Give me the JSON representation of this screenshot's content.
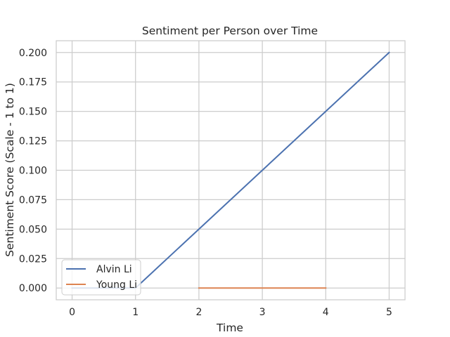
{
  "chart_data": {
    "type": "line",
    "title": "Sentiment per Person over Time",
    "xlabel": "Time",
    "ylabel": "Sentiment Score (Scale - 1 to 1)",
    "xlim": [
      -0.25,
      5.25
    ],
    "ylim": [
      -0.01,
      0.21
    ],
    "xticks": [
      0,
      1,
      2,
      3,
      4,
      5
    ],
    "xtick_labels": [
      "0",
      "1",
      "2",
      "3",
      "4",
      "5"
    ],
    "yticks": [
      0.0,
      0.025,
      0.05,
      0.075,
      0.1,
      0.125,
      0.15,
      0.175,
      0.2
    ],
    "ytick_labels": [
      "0.000",
      "0.025",
      "0.050",
      "0.075",
      "0.100",
      "0.125",
      "0.150",
      "0.175",
      "0.200"
    ],
    "grid": true,
    "legend_position": "lower-left",
    "series": [
      {
        "name": "Alvin Li",
        "color": "#4c72b0",
        "x": [
          0,
          1,
          2,
          3,
          4,
          5
        ],
        "y": [
          0.0,
          0.0,
          0.05,
          0.1,
          0.15,
          0.2
        ]
      },
      {
        "name": "Young Li",
        "color": "#dd8452",
        "x": [
          0,
          1,
          2,
          3,
          4
        ],
        "y": [
          null,
          null,
          0.0,
          0.0,
          0.0
        ]
      }
    ]
  }
}
